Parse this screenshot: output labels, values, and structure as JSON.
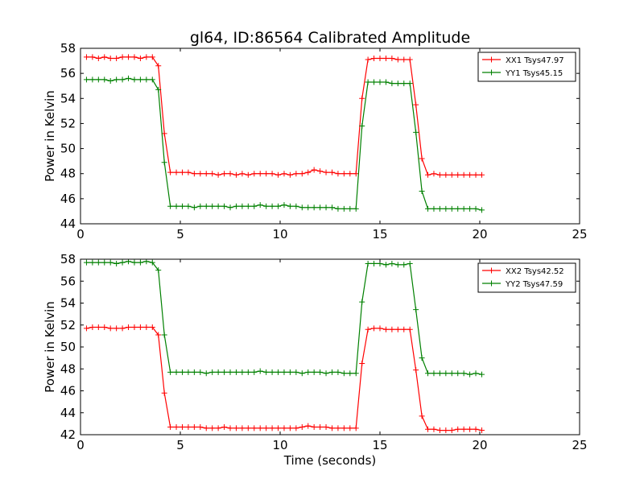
{
  "figure": {
    "title": "gl64, ID:86564 Calibrated Amplitude"
  },
  "chart_data": [
    {
      "type": "line",
      "title": "gl64, ID:86564 Calibrated Amplitude",
      "xlabel": "",
      "ylabel": "Power in Kelvin",
      "xlim": [
        0,
        25
      ],
      "ylim": [
        44,
        58
      ],
      "xticks": [
        0,
        5,
        10,
        15,
        20,
        25
      ],
      "yticks": [
        44,
        46,
        48,
        50,
        52,
        54,
        56,
        58
      ],
      "grid": false,
      "legend_position": "top-right",
      "x": [
        0.3,
        0.6,
        0.9,
        1.2,
        1.5,
        1.8,
        2.1,
        2.4,
        2.7,
        3.0,
        3.3,
        3.6,
        3.9,
        4.2,
        4.5,
        4.8,
        5.1,
        5.4,
        5.7,
        6.0,
        6.3,
        6.6,
        6.9,
        7.2,
        7.5,
        7.8,
        8.1,
        8.4,
        8.7,
        9.0,
        9.3,
        9.6,
        9.9,
        10.2,
        10.5,
        10.8,
        11.1,
        11.4,
        11.7,
        12.0,
        12.3,
        12.6,
        12.9,
        13.2,
        13.5,
        13.8,
        14.1,
        14.4,
        14.7,
        15.0,
        15.3,
        15.6,
        15.9,
        16.2,
        16.5,
        16.8,
        17.1,
        17.4,
        17.7,
        18.0,
        18.3,
        18.6,
        18.9,
        19.2,
        19.5,
        19.8,
        20.1
      ],
      "series": [
        {
          "name": "XX1 Tsys47.97",
          "color": "#ff0000",
          "values": [
            57.3,
            57.3,
            57.2,
            57.3,
            57.2,
            57.2,
            57.3,
            57.3,
            57.3,
            57.2,
            57.3,
            57.3,
            56.6,
            51.2,
            48.1,
            48.1,
            48.1,
            48.1,
            48.0,
            48.0,
            48.0,
            48.0,
            47.9,
            48.0,
            48.0,
            47.9,
            48.0,
            47.9,
            48.0,
            48.0,
            48.0,
            48.0,
            47.9,
            48.0,
            47.9,
            48.0,
            48.0,
            48.1,
            48.3,
            48.2,
            48.1,
            48.1,
            48.0,
            48.0,
            48.0,
            48.0,
            54.0,
            57.1,
            57.2,
            57.2,
            57.2,
            57.2,
            57.1,
            57.1,
            57.1,
            53.5,
            49.2,
            47.9,
            48.0,
            47.9,
            47.9,
            47.9,
            47.9,
            47.9,
            47.9,
            47.9,
            47.9
          ]
        },
        {
          "name": "YY1 Tsys45.15",
          "color": "#008000",
          "values": [
            55.5,
            55.5,
            55.5,
            55.5,
            55.4,
            55.5,
            55.5,
            55.6,
            55.5,
            55.5,
            55.5,
            55.5,
            54.7,
            48.9,
            45.4,
            45.4,
            45.4,
            45.4,
            45.3,
            45.4,
            45.4,
            45.4,
            45.4,
            45.4,
            45.3,
            45.4,
            45.4,
            45.4,
            45.4,
            45.5,
            45.4,
            45.4,
            45.4,
            45.5,
            45.4,
            45.4,
            45.3,
            45.3,
            45.3,
            45.3,
            45.3,
            45.3,
            45.2,
            45.2,
            45.2,
            45.2,
            51.8,
            55.3,
            55.3,
            55.3,
            55.3,
            55.2,
            55.2,
            55.2,
            55.2,
            51.3,
            46.6,
            45.2,
            45.2,
            45.2,
            45.2,
            45.2,
            45.2,
            45.2,
            45.2,
            45.2,
            45.1
          ]
        }
      ]
    },
    {
      "type": "line",
      "title": "",
      "xlabel": "Time (seconds)",
      "ylabel": "Power in Kelvin",
      "xlim": [
        0,
        25
      ],
      "ylim": [
        42,
        58
      ],
      "xticks": [
        0,
        5,
        10,
        15,
        20,
        25
      ],
      "yticks": [
        42,
        44,
        46,
        48,
        50,
        52,
        54,
        56,
        58
      ],
      "grid": false,
      "legend_position": "top-right",
      "x": [
        0.3,
        0.6,
        0.9,
        1.2,
        1.5,
        1.8,
        2.1,
        2.4,
        2.7,
        3.0,
        3.3,
        3.6,
        3.9,
        4.2,
        4.5,
        4.8,
        5.1,
        5.4,
        5.7,
        6.0,
        6.3,
        6.6,
        6.9,
        7.2,
        7.5,
        7.8,
        8.1,
        8.4,
        8.7,
        9.0,
        9.3,
        9.6,
        9.9,
        10.2,
        10.5,
        10.8,
        11.1,
        11.4,
        11.7,
        12.0,
        12.3,
        12.6,
        12.9,
        13.2,
        13.5,
        13.8,
        14.1,
        14.4,
        14.7,
        15.0,
        15.3,
        15.6,
        15.9,
        16.2,
        16.5,
        16.8,
        17.1,
        17.4,
        17.7,
        18.0,
        18.3,
        18.6,
        18.9,
        19.2,
        19.5,
        19.8,
        20.1
      ],
      "series": [
        {
          "name": "XX2 Tsys42.52",
          "color": "#ff0000",
          "values": [
            51.7,
            51.8,
            51.8,
            51.8,
            51.7,
            51.7,
            51.7,
            51.8,
            51.8,
            51.8,
            51.8,
            51.8,
            51.1,
            45.8,
            42.7,
            42.7,
            42.7,
            42.7,
            42.7,
            42.7,
            42.6,
            42.6,
            42.6,
            42.7,
            42.6,
            42.6,
            42.6,
            42.6,
            42.6,
            42.6,
            42.6,
            42.6,
            42.6,
            42.6,
            42.6,
            42.6,
            42.7,
            42.8,
            42.7,
            42.7,
            42.7,
            42.6,
            42.6,
            42.6,
            42.6,
            42.6,
            48.5,
            51.6,
            51.7,
            51.7,
            51.6,
            51.6,
            51.6,
            51.6,
            51.6,
            47.9,
            43.7,
            42.5,
            42.5,
            42.4,
            42.4,
            42.4,
            42.5,
            42.5,
            42.5,
            42.5,
            42.4
          ]
        },
        {
          "name": "YY2 Tsys47.59",
          "color": "#008000",
          "values": [
            57.7,
            57.7,
            57.7,
            57.7,
            57.7,
            57.6,
            57.7,
            57.8,
            57.7,
            57.7,
            57.8,
            57.7,
            57.0,
            51.1,
            47.7,
            47.7,
            47.7,
            47.7,
            47.7,
            47.7,
            47.6,
            47.7,
            47.7,
            47.7,
            47.7,
            47.7,
            47.7,
            47.7,
            47.7,
            47.8,
            47.7,
            47.7,
            47.7,
            47.7,
            47.7,
            47.7,
            47.6,
            47.7,
            47.7,
            47.7,
            47.6,
            47.7,
            47.7,
            47.6,
            47.6,
            47.6,
            54.1,
            57.6,
            57.6,
            57.6,
            57.5,
            57.6,
            57.5,
            57.5,
            57.6,
            53.4,
            49.0,
            47.6,
            47.6,
            47.6,
            47.6,
            47.6,
            47.6,
            47.6,
            47.5,
            47.6,
            47.5
          ]
        }
      ]
    }
  ]
}
